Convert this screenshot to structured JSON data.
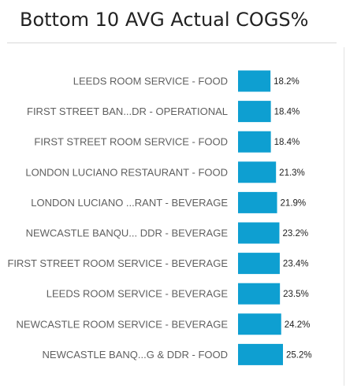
{
  "chart_data": {
    "type": "bar",
    "orientation": "horizontal",
    "title": "Bottom 10 AVG Actual COGS%",
    "categories": [
      "LEEDS ROOM SERVICE - FOOD",
      "FIRST STREET BAN...DR - OPERATIONAL",
      "FIRST STREET ROOM SERVICE - FOOD",
      "LONDON LUCIANO RESTAURANT - FOOD",
      "LONDON LUCIANO ...RANT - BEVERAGE",
      "NEWCASTLE BANQU... DDR - BEVERAGE",
      "FIRST STREET ROOM SERVICE - BEVERAGE",
      "LEEDS ROOM SERVICE - BEVERAGE",
      "NEWCASTLE ROOM SERVICE - BEVERAGE",
      "NEWCASTLE BANQ...G & DDR - FOOD"
    ],
    "values": [
      18.2,
      18.4,
      18.4,
      21.3,
      21.9,
      23.2,
      23.4,
      23.5,
      24.2,
      25.2
    ],
    "data_labels": [
      "18.2%",
      "18.4%",
      "18.4%",
      "21.3%",
      "21.9%",
      "23.2%",
      "23.4%",
      "23.5%",
      "24.2%",
      "25.2%"
    ],
    "value_unit": "%",
    "xlim": [
      0,
      25.2
    ],
    "bar_color": "#0e9fd1",
    "grid": false,
    "legend": "none"
  }
}
